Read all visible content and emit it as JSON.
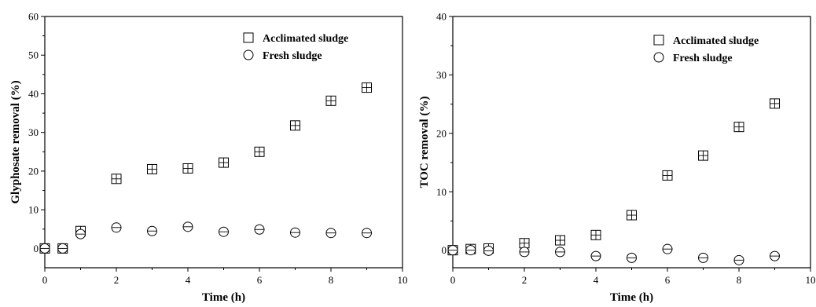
{
  "chart_data": [
    {
      "type": "scatter",
      "xlabel": "Time (h)",
      "ylabel": "Glyphosate removal (%)",
      "xlim": [
        0,
        10
      ],
      "ylim": [
        -5,
        60
      ],
      "xticks": [
        0,
        2,
        4,
        6,
        8,
        10
      ],
      "yticks": [
        0,
        10,
        20,
        30,
        40,
        50,
        60
      ],
      "legend": "top-right",
      "series": [
        {
          "name": "Acclimated sludge",
          "marker": "square",
          "x": [
            0,
            0.5,
            1,
            2,
            3,
            4,
            5,
            6,
            7,
            8,
            9
          ],
          "y": [
            0,
            0,
            4.5,
            18,
            20.5,
            20.7,
            22.2,
            25,
            31.8,
            38.2,
            41.6
          ]
        },
        {
          "name": "Fresh sludge",
          "marker": "circle",
          "x": [
            0,
            0.5,
            1,
            2,
            3,
            4,
            5,
            6,
            7,
            8,
            9
          ],
          "y": [
            0,
            0,
            3.7,
            5.4,
            4.5,
            5.6,
            4.3,
            4.9,
            4.1,
            4.0,
            4.0
          ]
        }
      ]
    },
    {
      "type": "scatter",
      "xlabel": "Time (h)",
      "ylabel": "TOC removal (%)",
      "xlim": [
        0,
        10
      ],
      "ylim": [
        -3,
        40
      ],
      "xticks": [
        0,
        2,
        4,
        6,
        8,
        10
      ],
      "yticks": [
        0,
        10,
        20,
        30,
        40
      ],
      "legend": "top-right",
      "series": [
        {
          "name": "Acclimated sludge",
          "marker": "square",
          "x": [
            0,
            0.5,
            1,
            2,
            3,
            4,
            5,
            6,
            7,
            8,
            9
          ],
          "y": [
            0,
            0.2,
            0.3,
            1.2,
            1.7,
            2.6,
            6.0,
            12.8,
            16.2,
            21.1,
            25.1
          ]
        },
        {
          "name": "Fresh sludge",
          "marker": "circle",
          "x": [
            0,
            0.5,
            1,
            2,
            3,
            4,
            5,
            6,
            7,
            8,
            9
          ],
          "y": [
            0,
            0,
            -0.1,
            -0.3,
            -0.3,
            -1.0,
            -1.3,
            0.2,
            -1.3,
            -1.7,
            -1.0
          ]
        }
      ]
    }
  ]
}
